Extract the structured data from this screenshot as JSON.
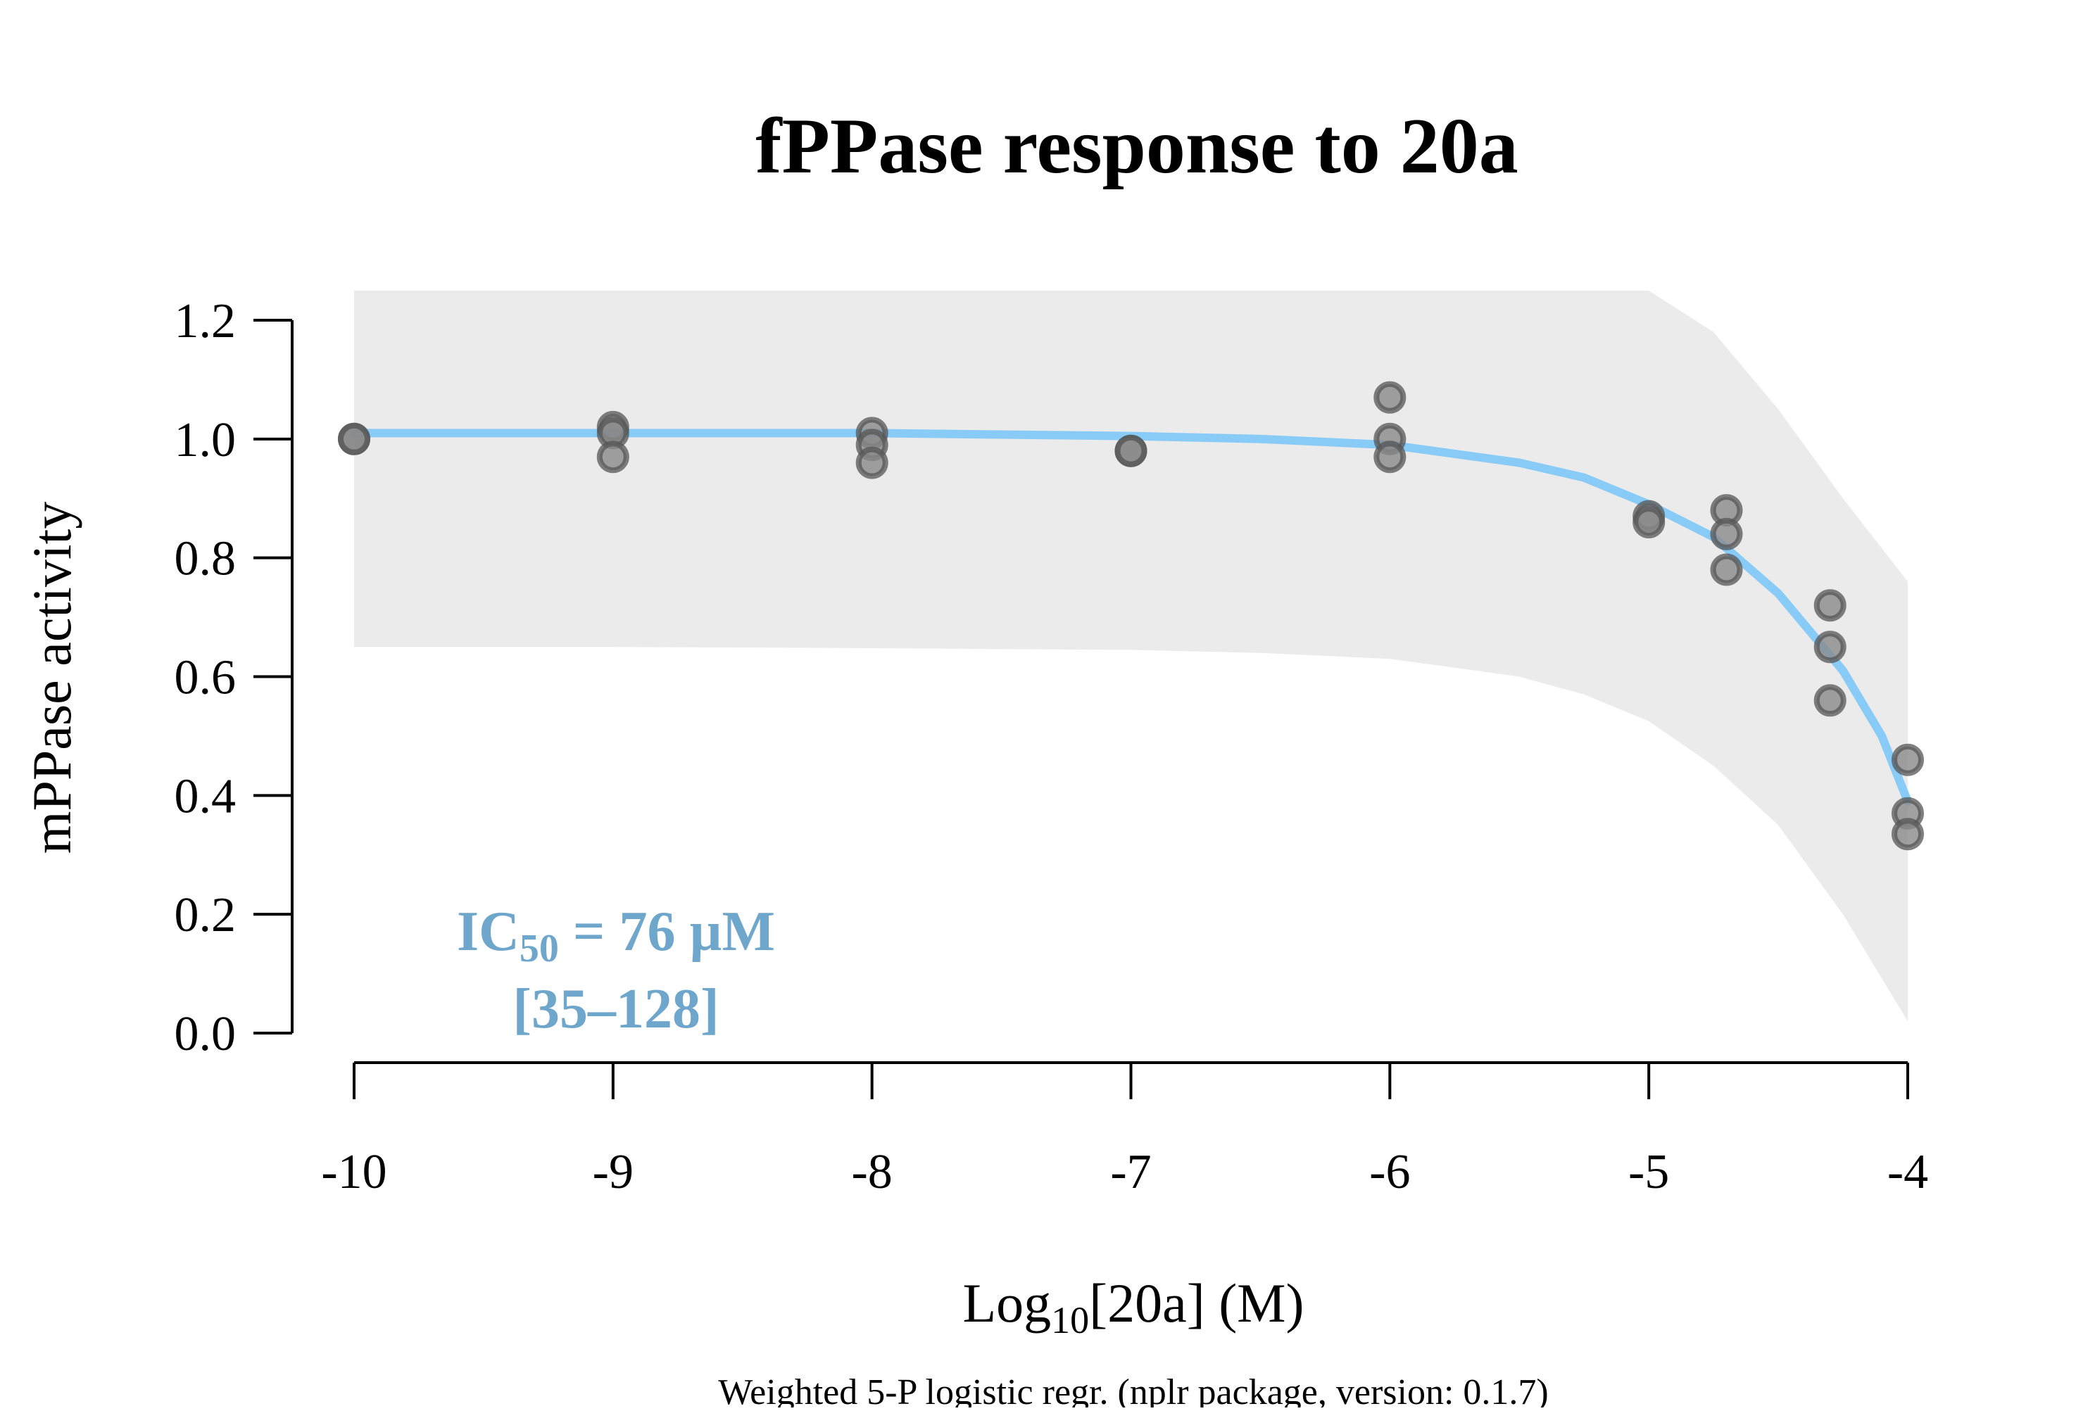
{
  "chart_data": {
    "type": "scatter",
    "title": "fPPase response to 20a",
    "xlabel": {
      "prefix": "Log",
      "subscript": "10",
      "suffix": "[20a] (M)"
    },
    "ylabel": "mPPase activity",
    "footnote": "Weighted 5-P logistic regr. (nplr package, version: 0.1.7)",
    "annotation": {
      "line1_prefix": "IC",
      "line1_subscript": "50",
      "line1_suffix": " = 76 µM",
      "line2": "[35–128]"
    },
    "xlim": [
      -10,
      -4
    ],
    "ylim": [
      0,
      1.2
    ],
    "x_ticks": [
      -10,
      -9,
      -8,
      -7,
      -6,
      -5,
      -4
    ],
    "x_tick_labels": [
      "-10",
      "-9",
      "-8",
      "-7",
      "-6",
      "-5",
      "-4"
    ],
    "y_ticks": [
      0,
      0.2,
      0.4,
      0.6,
      0.8,
      1.0,
      1.2
    ],
    "y_tick_labels": [
      "0.0",
      "0.2",
      "0.4",
      "0.6",
      "0.8",
      "1.0",
      "1.2"
    ],
    "points": [
      {
        "x": -10,
        "y": 1.0
      },
      {
        "x": -10,
        "y": 1.0
      },
      {
        "x": -9,
        "y": 1.02
      },
      {
        "x": -9,
        "y": 1.01
      },
      {
        "x": -9,
        "y": 0.97
      },
      {
        "x": -8,
        "y": 1.01
      },
      {
        "x": -8,
        "y": 0.99
      },
      {
        "x": -8,
        "y": 0.96
      },
      {
        "x": -7,
        "y": 0.98
      },
      {
        "x": -7,
        "y": 0.98
      },
      {
        "x": -6,
        "y": 1.07
      },
      {
        "x": -6,
        "y": 1.0
      },
      {
        "x": -6,
        "y": 0.97
      },
      {
        "x": -5,
        "y": 0.87
      },
      {
        "x": -5,
        "y": 0.86
      },
      {
        "x": -4.7,
        "y": 0.88
      },
      {
        "x": -4.7,
        "y": 0.84
      },
      {
        "x": -4.7,
        "y": 0.78
      },
      {
        "x": -4.3,
        "y": 0.72
      },
      {
        "x": -4.3,
        "y": 0.65
      },
      {
        "x": -4.3,
        "y": 0.56
      },
      {
        "x": -4,
        "y": 0.46
      },
      {
        "x": -4,
        "y": 0.37
      },
      {
        "x": -4,
        "y": 0.335
      }
    ],
    "fit_curve": {
      "x": [
        -10,
        -9,
        -8,
        -7,
        -6.5,
        -6,
        -5.75,
        -5.5,
        -5.25,
        -5,
        -4.75,
        -4.5,
        -4.25,
        -4.1,
        -4
      ],
      "y": [
        1.01,
        1.01,
        1.01,
        1.005,
        1.0,
        0.99,
        0.975,
        0.96,
        0.935,
        0.89,
        0.835,
        0.74,
        0.61,
        0.5,
        0.39
      ]
    },
    "confidence_band": {
      "x": [
        -10,
        -9,
        -8,
        -7,
        -6.5,
        -6,
        -5.75,
        -5.5,
        -5.25,
        -5,
        -4.75,
        -4.5,
        -4.25,
        -4
      ],
      "upper": [
        1.25,
        1.25,
        1.25,
        1.25,
        1.25,
        1.25,
        1.25,
        1.25,
        1.25,
        1.25,
        1.18,
        1.05,
        0.9,
        0.76
      ],
      "lower": [
        0.65,
        0.65,
        0.648,
        0.645,
        0.64,
        0.63,
        0.615,
        0.6,
        0.57,
        0.525,
        0.45,
        0.35,
        0.2,
        0.02
      ]
    },
    "colors": {
      "fit_line": "#89cbf7",
      "band": "#ebebeb",
      "point_fill": "#8a8a8a",
      "point_stroke": "#555555",
      "annotation": "#6fa6cb"
    },
    "grid": false
  }
}
